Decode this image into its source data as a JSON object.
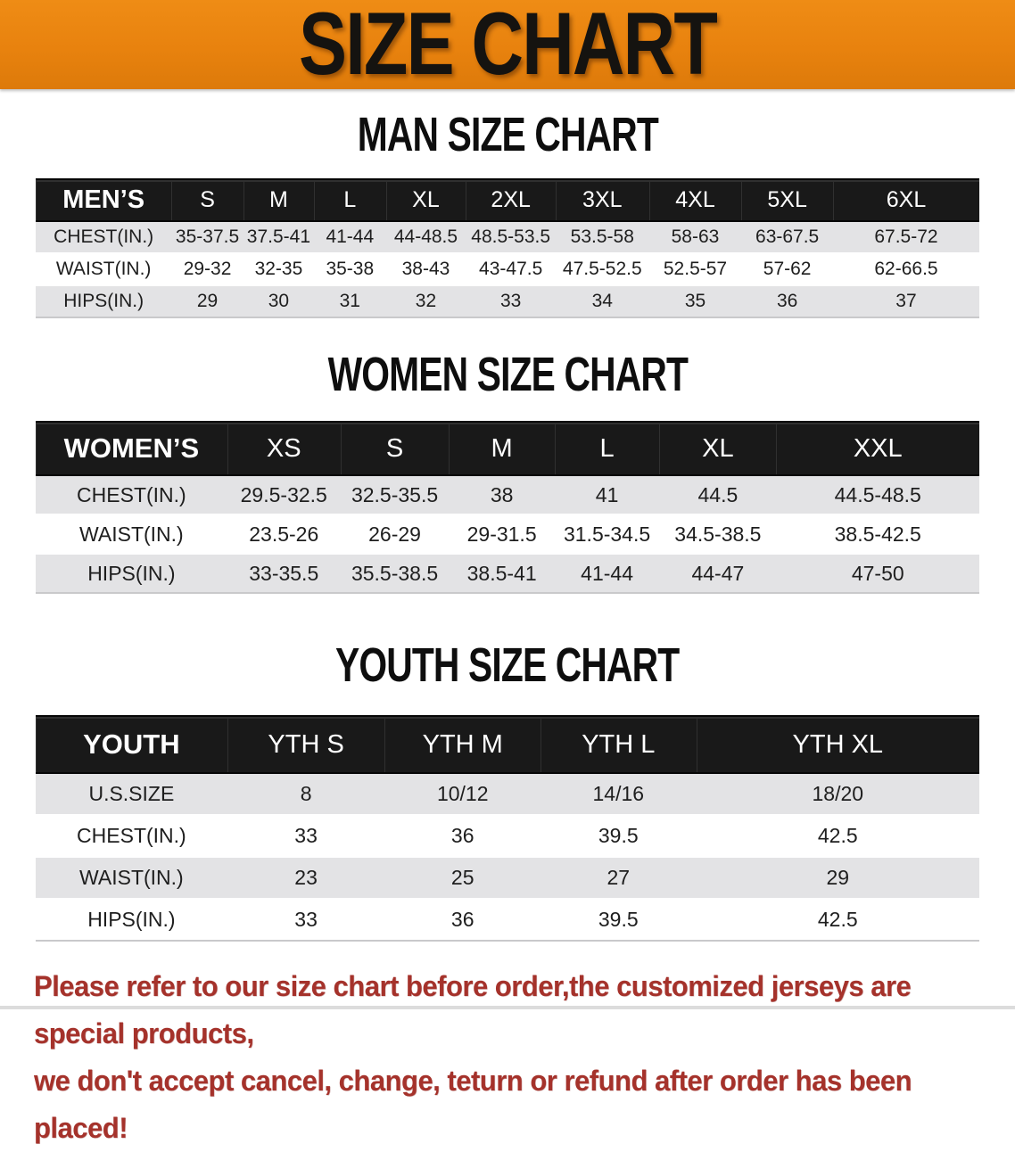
{
  "banner": {
    "title": "SIZE CHART",
    "bg_color": "#E8820E",
    "text_color": "#151310"
  },
  "sections": [
    {
      "id": "men",
      "heading": "MAN SIZE CHART",
      "table": {
        "header": [
          "MEN’S",
          "S",
          "M",
          "L",
          "XL",
          "2XL",
          "3XL",
          "4XL",
          "5XL",
          "6XL"
        ],
        "rows": [
          {
            "label": "CHEST(IN.)",
            "values": [
              "35-37.5",
              "37.5-41",
              "41-44",
              "44-48.5",
              "48.5-53.5",
              "53.5-58",
              "58-63",
              "63-67.5",
              "67.5-72"
            ]
          },
          {
            "label": "WAIST(IN.)",
            "values": [
              "29-32",
              "32-35",
              "35-38",
              "38-43",
              "43-47.5",
              "47.5-52.5",
              "52.5-57",
              "57-62",
              "62-66.5"
            ]
          },
          {
            "label": "HIPS(IN.)",
            "values": [
              "29",
              "30",
              "31",
              "32",
              "33",
              "34",
              "35",
              "36",
              "37"
            ]
          }
        ]
      }
    },
    {
      "id": "women",
      "heading": "WOMEN SIZE CHART",
      "table": {
        "header": [
          "WOMEN’S",
          "XS",
          "S",
          "M",
          "L",
          "XL",
          "XXL"
        ],
        "rows": [
          {
            "label": "CHEST(IN.)",
            "values": [
              "29.5-32.5",
              "32.5-35.5",
              "38",
              "41",
              "44.5",
              "44.5-48.5"
            ]
          },
          {
            "label": "WAIST(IN.)",
            "values": [
              "23.5-26",
              "26-29",
              "29-31.5",
              "31.5-34.5",
              "34.5-38.5",
              "38.5-42.5"
            ]
          },
          {
            "label": "HIPS(IN.)",
            "values": [
              "33-35.5",
              "35.5-38.5",
              "38.5-41",
              "41-44",
              "44-47",
              "47-50"
            ]
          }
        ]
      }
    },
    {
      "id": "youth",
      "heading": "YOUTH SIZE CHART",
      "table": {
        "header": [
          "YOUTH",
          "YTH S",
          "YTH M",
          "YTH L",
          "YTH XL"
        ],
        "rows": [
          {
            "label": "U.S.SIZE",
            "values": [
              "8",
              "10/12",
              "14/16",
              "18/20"
            ]
          },
          {
            "label": "CHEST(IN.)",
            "values": [
              "33",
              "36",
              "39.5",
              "42.5"
            ]
          },
          {
            "label": "WAIST(IN.)",
            "values": [
              "23",
              "25",
              "27",
              "29"
            ]
          },
          {
            "label": "HIPS(IN.)",
            "values": [
              "33",
              "36",
              "39.5",
              "42.5"
            ]
          }
        ]
      }
    }
  ],
  "footer": {
    "line1": "Please refer to our size chart before order,the customized jerseys are special products,",
    "line2": "we don't accept cancel, change, teturn or refund after order has been placed!",
    "text_color": "#A5322B"
  }
}
